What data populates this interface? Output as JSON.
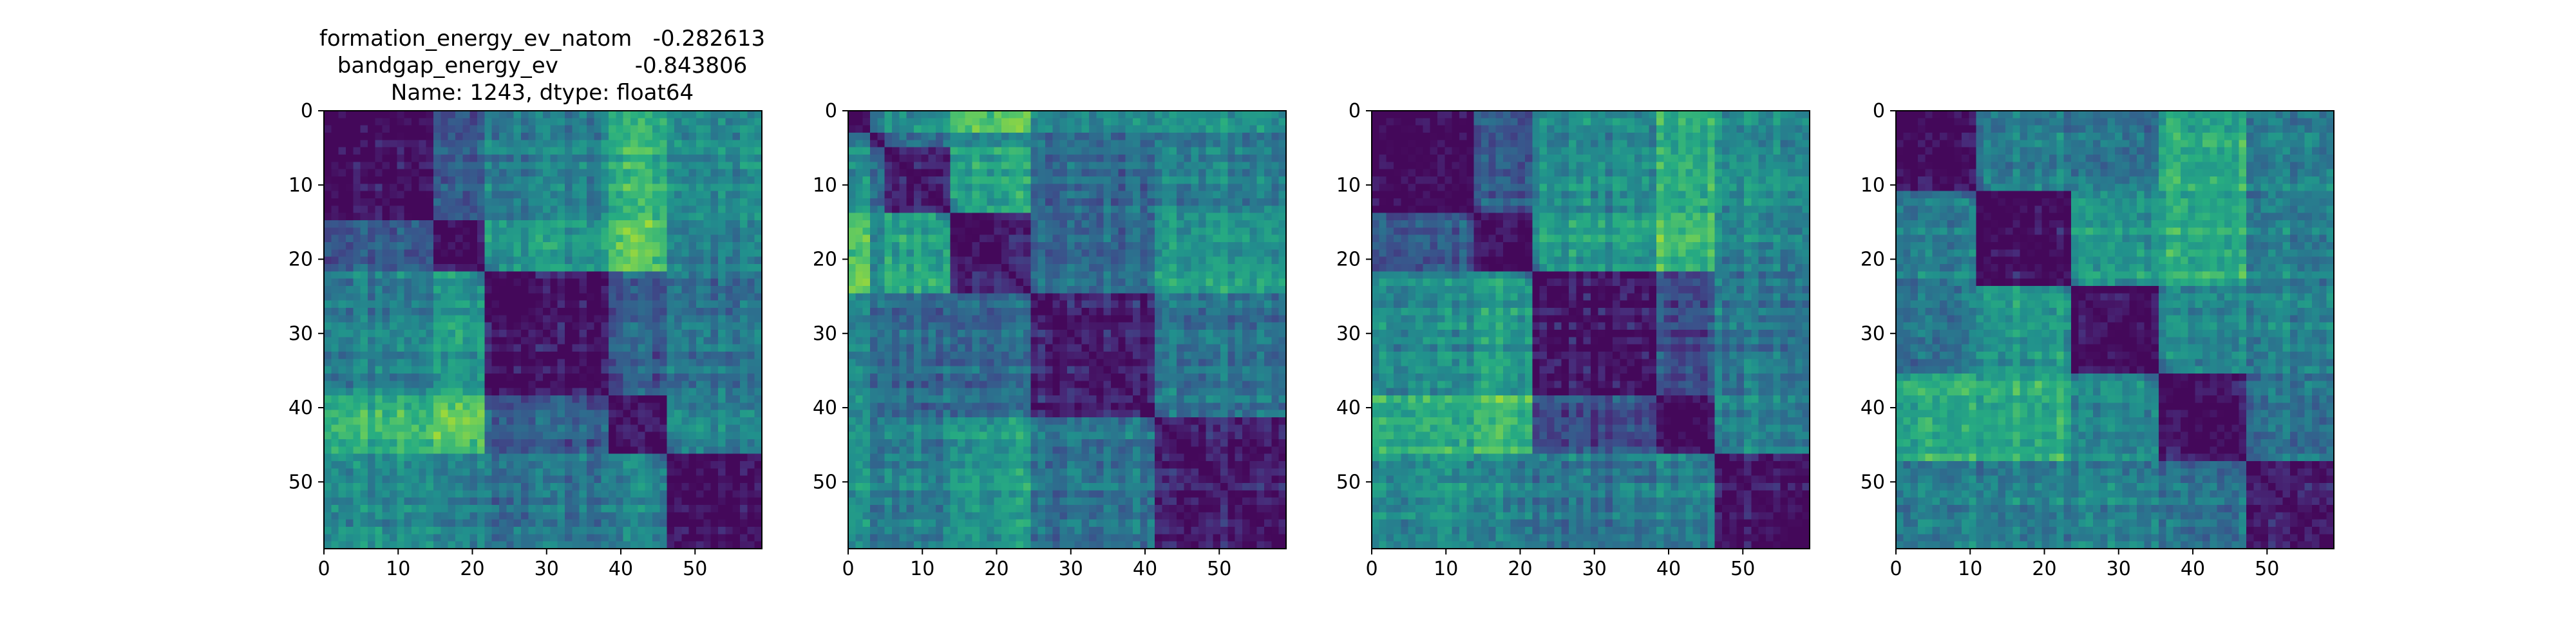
{
  "figure": {
    "title_lines": [
      "formation_energy_ev_natom   -0.282613",
      "bandgap_energy_ev           -0.843806",
      "Name: 1243, dtype: float64"
    ]
  },
  "chart_data": [
    {
      "type": "heatmap",
      "title": "",
      "xlabel": "",
      "ylabel": "",
      "matrix_size": 60,
      "xlim": [
        0,
        59
      ],
      "ylim": [
        59,
        0
      ],
      "x_ticks": [
        0,
        10,
        20,
        30,
        40,
        50
      ],
      "y_ticks": [
        0,
        10,
        20,
        30,
        40,
        50
      ],
      "colormap": "viridis",
      "diagonal": "low",
      "block_boundaries": [
        0,
        15,
        22,
        39,
        47,
        60
      ],
      "block_levels": [
        [
          0.05,
          0.3,
          0.45,
          0.65,
          0.5
        ],
        [
          0.3,
          0.05,
          0.55,
          0.75,
          0.45
        ],
        [
          0.45,
          0.55,
          0.05,
          0.3,
          0.4
        ],
        [
          0.65,
          0.75,
          0.3,
          0.05,
          0.45
        ],
        [
          0.5,
          0.45,
          0.4,
          0.45,
          0.05
        ]
      ],
      "grid": false,
      "seed": 11
    },
    {
      "type": "heatmap",
      "title": "",
      "xlabel": "",
      "ylabel": "",
      "matrix_size": 60,
      "xlim": [
        0,
        59
      ],
      "ylim": [
        59,
        0
      ],
      "x_ticks": [
        0,
        10,
        20,
        30,
        40,
        50
      ],
      "y_ticks": [
        0,
        10,
        20,
        30,
        40,
        50
      ],
      "colormap": "viridis",
      "diagonal": "low",
      "block_boundaries": [
        0,
        3,
        5,
        14,
        25,
        42,
        60
      ],
      "block_levels": [
        [
          0.05,
          0.45,
          0.5,
          0.75,
          0.5,
          0.55
        ],
        [
          0.45,
          0.05,
          0.35,
          0.45,
          0.35,
          0.4
        ],
        [
          0.5,
          0.35,
          0.1,
          0.6,
          0.35,
          0.45
        ],
        [
          0.75,
          0.45,
          0.6,
          0.1,
          0.35,
          0.55
        ],
        [
          0.5,
          0.35,
          0.35,
          0.35,
          0.1,
          0.4
        ],
        [
          0.55,
          0.4,
          0.45,
          0.55,
          0.4,
          0.1
        ]
      ],
      "grid": false,
      "seed": 23
    },
    {
      "type": "heatmap",
      "title": "",
      "xlabel": "",
      "ylabel": "",
      "matrix_size": 60,
      "xlim": [
        0,
        59
      ],
      "ylim": [
        59,
        0
      ],
      "x_ticks": [
        0,
        10,
        20,
        30,
        40,
        50
      ],
      "y_ticks": [
        0,
        10,
        20,
        30,
        40,
        50
      ],
      "colormap": "viridis",
      "diagonal": "low",
      "block_boundaries": [
        0,
        14,
        22,
        39,
        47,
        60
      ],
      "block_levels": [
        [
          0.05,
          0.3,
          0.5,
          0.65,
          0.5
        ],
        [
          0.3,
          0.05,
          0.55,
          0.7,
          0.45
        ],
        [
          0.5,
          0.55,
          0.05,
          0.25,
          0.4
        ],
        [
          0.65,
          0.7,
          0.25,
          0.05,
          0.45
        ],
        [
          0.5,
          0.45,
          0.4,
          0.45,
          0.05
        ]
      ],
      "grid": false,
      "seed": 37
    },
    {
      "type": "heatmap",
      "title": "",
      "xlabel": "",
      "ylabel": "",
      "matrix_size": 60,
      "xlim": [
        0,
        59
      ],
      "ylim": [
        59,
        0
      ],
      "x_ticks": [
        0,
        10,
        20,
        30,
        40,
        50
      ],
      "y_ticks": [
        0,
        10,
        20,
        30,
        40,
        50
      ],
      "colormap": "viridis",
      "diagonal": "low",
      "block_boundaries": [
        0,
        11,
        24,
        36,
        48,
        60
      ],
      "block_levels": [
        [
          0.05,
          0.45,
          0.4,
          0.65,
          0.45
        ],
        [
          0.45,
          0.05,
          0.55,
          0.65,
          0.45
        ],
        [
          0.4,
          0.55,
          0.05,
          0.5,
          0.45
        ],
        [
          0.65,
          0.65,
          0.5,
          0.1,
          0.4
        ],
        [
          0.45,
          0.45,
          0.45,
          0.4,
          0.1
        ]
      ],
      "grid": false,
      "seed": 53
    }
  ]
}
